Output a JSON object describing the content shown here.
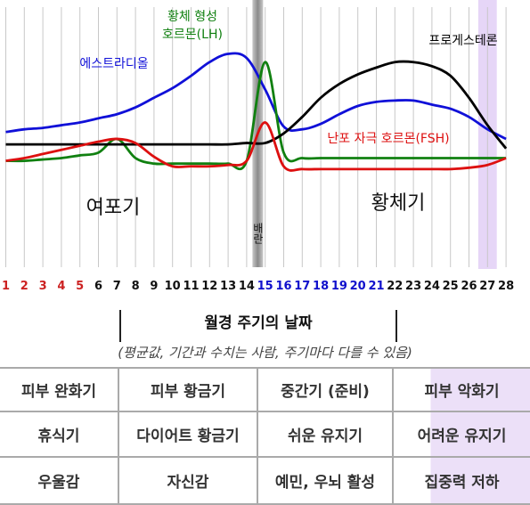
{
  "chart_data": {
    "type": "line",
    "x": [
      1,
      2,
      3,
      4,
      5,
      6,
      7,
      8,
      9,
      10,
      11,
      12,
      13,
      14,
      15,
      16,
      17,
      18,
      19,
      20,
      21,
      22,
      23,
      24,
      25,
      26,
      27,
      28
    ],
    "day_labels": [
      "1",
      "2",
      "3",
      "4",
      "5",
      "6",
      "7",
      "8",
      "9",
      "10",
      "11",
      "12",
      "13",
      "14",
      "15",
      "16",
      "17",
      "18",
      "19",
      "20",
      "21",
      "22",
      "23",
      "24",
      "25",
      "26",
      "27",
      "28"
    ],
    "day_colors": [
      "#cc2222",
      "#cc2222",
      "#cc2222",
      "#cc2222",
      "#cc2222",
      "#111111",
      "#111111",
      "#111111",
      "#111111",
      "#111111",
      "#111111",
      "#111111",
      "#111111",
      "#111111",
      "#1111cc",
      "#1111cc",
      "#1111cc",
      "#1111cc",
      "#1111cc",
      "#1111cc",
      "#1111cc",
      "#111111",
      "#111111",
      "#111111",
      "#111111",
      "#111111",
      "#111111",
      "#111111"
    ],
    "series": [
      {
        "name": "에스트라디올",
        "color": "#1010d8",
        "values": [
          0.31,
          0.33,
          0.34,
          0.36,
          0.38,
          0.41,
          0.44,
          0.49,
          0.56,
          0.63,
          0.72,
          0.82,
          0.88,
          0.85,
          0.62,
          0.35,
          0.33,
          0.37,
          0.44,
          0.5,
          0.53,
          0.54,
          0.54,
          0.51,
          0.48,
          0.42,
          0.33,
          0.26
        ]
      },
      {
        "name": "황체 형성\n호르몬(LH)",
        "color": "#108010",
        "values": [
          0.1,
          0.1,
          0.11,
          0.12,
          0.14,
          0.16,
          0.26,
          0.12,
          0.08,
          0.08,
          0.08,
          0.08,
          0.08,
          0.1,
          0.82,
          0.16,
          0.12,
          0.12,
          0.12,
          0.12,
          0.12,
          0.12,
          0.12,
          0.12,
          0.12,
          0.12,
          0.12,
          0.12
        ]
      },
      {
        "name": "프로게스테론",
        "color": "#000000",
        "values": [
          0.22,
          0.22,
          0.22,
          0.22,
          0.22,
          0.22,
          0.22,
          0.22,
          0.22,
          0.22,
          0.22,
          0.22,
          0.22,
          0.23,
          0.23,
          0.3,
          0.42,
          0.56,
          0.66,
          0.73,
          0.78,
          0.82,
          0.82,
          0.79,
          0.72,
          0.56,
          0.36,
          0.19
        ]
      },
      {
        "name": "난포 자극 호르몬(FSH)",
        "color": "#dd1010",
        "values": [
          0.1,
          0.12,
          0.15,
          0.18,
          0.21,
          0.24,
          0.26,
          0.23,
          0.13,
          0.06,
          0.06,
          0.06,
          0.07,
          0.1,
          0.38,
          0.06,
          0.04,
          0.04,
          0.04,
          0.04,
          0.04,
          0.04,
          0.04,
          0.04,
          0.04,
          0.05,
          0.07,
          0.12
        ]
      }
    ],
    "phases": {
      "follicular": "여포기",
      "luteal": "황체기",
      "ovulation": "배란"
    },
    "ovulation_day": 14.6,
    "highlight_days": [
      27
    ],
    "ylim": [
      0,
      1
    ],
    "grid": true
  },
  "table": {
    "title": "월경 주기의 날짜",
    "subtitle": "(평균값, 기간과 수치는 사람, 주기마다 다를 수 있음)",
    "rows": [
      [
        "피부 완화기",
        "피부 황금기",
        "중간기 (준비)",
        "피부 악화기"
      ],
      [
        "휴식기",
        "다이어트 황금기",
        "쉬운 유지기",
        "어려운 유지기"
      ],
      [
        "우울감",
        "자신감",
        "예민, 우뇌 활성",
        "집중력 저하"
      ]
    ]
  },
  "colors": {
    "grid_line": "#c8c8c8",
    "highlight": "#e6d6f7",
    "ovulation_bar": "#909090",
    "table_border": "#aaaaaa"
  }
}
